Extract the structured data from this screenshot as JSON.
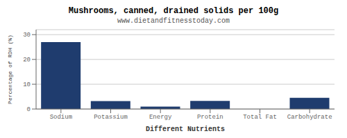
{
  "chart_data": {
    "type": "bar",
    "title": "Mushrooms, canned, drained solids per 100g",
    "subtitle": "www.dietandfitnesstoday.com",
    "xlabel": "Different Nutrients",
    "ylabel": "Percentage of RDH (%)",
    "categories": [
      "Sodium",
      "Potassium",
      "Energy",
      "Protein",
      "Total Fat",
      "Carbohydrate"
    ],
    "values": [
      27,
      3.2,
      1.0,
      3.3,
      0,
      4.5
    ],
    "color": "#1f3c6e",
    "ylim": [
      0,
      32
    ],
    "yticks": [
      0,
      10,
      20,
      30
    ],
    "grid": true
  }
}
